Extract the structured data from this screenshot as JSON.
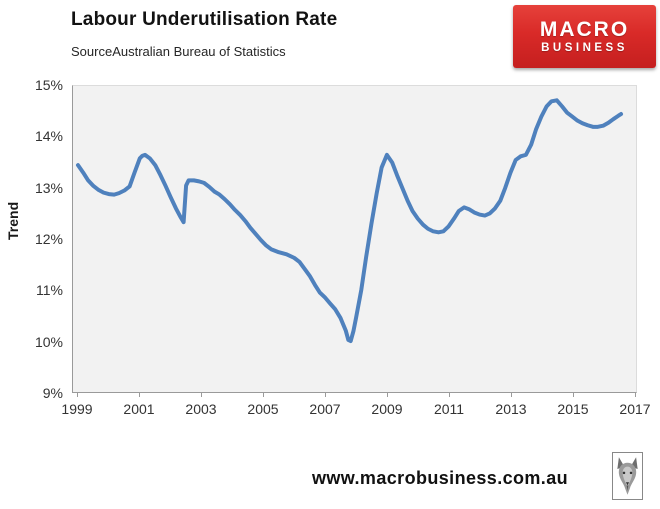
{
  "header": {
    "title": "Labour Underutilisation Rate",
    "subtitle": "SourceAustralian Bureau of Statistics"
  },
  "logo": {
    "line1": "MACRO",
    "line2": "BUSINESS",
    "bg_color": "#D92A28",
    "text_color": "#FFFFFF"
  },
  "footer": {
    "url": "www.macrobusiness.com.au",
    "logo_icon": "wolf-head-icon"
  },
  "chart_data": {
    "type": "line",
    "title": "Labour Underutilisation Rate",
    "xlabel": "",
    "ylabel": "Trend",
    "legend": "none",
    "grid": false,
    "plot_bg_color": "#F2F2F2",
    "line_color": "#4F81BD",
    "line_width": 4,
    "xlim": [
      1999,
      2017
    ],
    "ylim": [
      9,
      15
    ],
    "x_ticks": [
      {
        "value": 1999,
        "label": "1999"
      },
      {
        "value": 2001,
        "label": "2001"
      },
      {
        "value": 2003,
        "label": "2003"
      },
      {
        "value": 2005,
        "label": "2005"
      },
      {
        "value": 2007,
        "label": "2007"
      },
      {
        "value": 2009,
        "label": "2009"
      },
      {
        "value": 2011,
        "label": "2011"
      },
      {
        "value": 2013,
        "label": "2013"
      },
      {
        "value": 2015,
        "label": "2015"
      },
      {
        "value": 2017,
        "label": "2017"
      }
    ],
    "y_ticks": [
      {
        "value": 15,
        "label": "15%"
      },
      {
        "value": 14,
        "label": "14%"
      },
      {
        "value": 13,
        "label": "13%"
      },
      {
        "value": 12,
        "label": "12%"
      },
      {
        "value": 11,
        "label": "11%"
      },
      {
        "value": 10,
        "label": "10%"
      },
      {
        "value": 9,
        "label": "9%"
      }
    ],
    "x": [
      1999.0,
      1999.17,
      1999.33,
      1999.5,
      1999.67,
      1999.83,
      2000.0,
      2000.17,
      2000.33,
      2000.5,
      2000.67,
      2000.83,
      2001.0,
      2001.08,
      2001.17,
      2001.33,
      2001.5,
      2001.67,
      2001.83,
      2002.0,
      2002.17,
      2002.33,
      2002.42,
      2002.5,
      2002.58,
      2002.75,
      2002.92,
      2003.08,
      2003.25,
      2003.42,
      2003.58,
      2003.75,
      2003.92,
      2004.08,
      2004.25,
      2004.42,
      2004.58,
      2004.75,
      2004.92,
      2005.08,
      2005.25,
      2005.5,
      2005.75,
      2006.0,
      2006.17,
      2006.33,
      2006.5,
      2006.67,
      2006.83,
      2007.0,
      2007.17,
      2007.33,
      2007.5,
      2007.67,
      2007.75,
      2007.83,
      2007.92,
      2008.0,
      2008.17,
      2008.33,
      2008.5,
      2008.67,
      2008.83,
      2009.0,
      2009.17,
      2009.33,
      2009.5,
      2009.67,
      2009.83,
      2010.0,
      2010.17,
      2010.33,
      2010.5,
      2010.67,
      2010.83,
      2011.0,
      2011.17,
      2011.33,
      2011.5,
      2011.67,
      2011.83,
      2012.0,
      2012.17,
      2012.33,
      2012.5,
      2012.67,
      2012.83,
      2013.0,
      2013.17,
      2013.33,
      2013.5,
      2013.67,
      2013.83,
      2014.0,
      2014.17,
      2014.33,
      2014.5,
      2014.67,
      2014.83,
      2015.0,
      2015.17,
      2015.33,
      2015.5,
      2015.67,
      2015.83,
      2016.0,
      2016.17,
      2016.33,
      2016.5,
      2016.58
    ],
    "y": [
      13.45,
      13.3,
      13.15,
      13.04,
      12.96,
      12.91,
      12.88,
      12.87,
      12.9,
      12.95,
      13.03,
      13.3,
      13.58,
      13.63,
      13.65,
      13.58,
      13.45,
      13.25,
      13.05,
      12.82,
      12.6,
      12.42,
      12.33,
      13.05,
      13.15,
      13.15,
      13.13,
      13.1,
      13.02,
      12.93,
      12.87,
      12.78,
      12.68,
      12.57,
      12.47,
      12.35,
      12.22,
      12.1,
      11.98,
      11.88,
      11.8,
      11.74,
      11.7,
      11.63,
      11.55,
      11.42,
      11.28,
      11.1,
      10.95,
      10.85,
      10.73,
      10.62,
      10.45,
      10.2,
      10.02,
      10.0,
      10.2,
      10.45,
      11.0,
      11.65,
      12.3,
      12.9,
      13.4,
      13.65,
      13.5,
      13.25,
      13.0,
      12.75,
      12.55,
      12.4,
      12.28,
      12.2,
      12.15,
      12.13,
      12.15,
      12.25,
      12.4,
      12.55,
      12.62,
      12.58,
      12.52,
      12.48,
      12.46,
      12.5,
      12.6,
      12.75,
      13.0,
      13.3,
      13.55,
      13.62,
      13.65,
      13.85,
      14.15,
      14.4,
      14.6,
      14.7,
      14.72,
      14.6,
      14.48,
      14.4,
      14.32,
      14.27,
      14.23,
      14.2,
      14.2,
      14.22,
      14.28,
      14.35,
      14.42,
      14.45
    ]
  }
}
